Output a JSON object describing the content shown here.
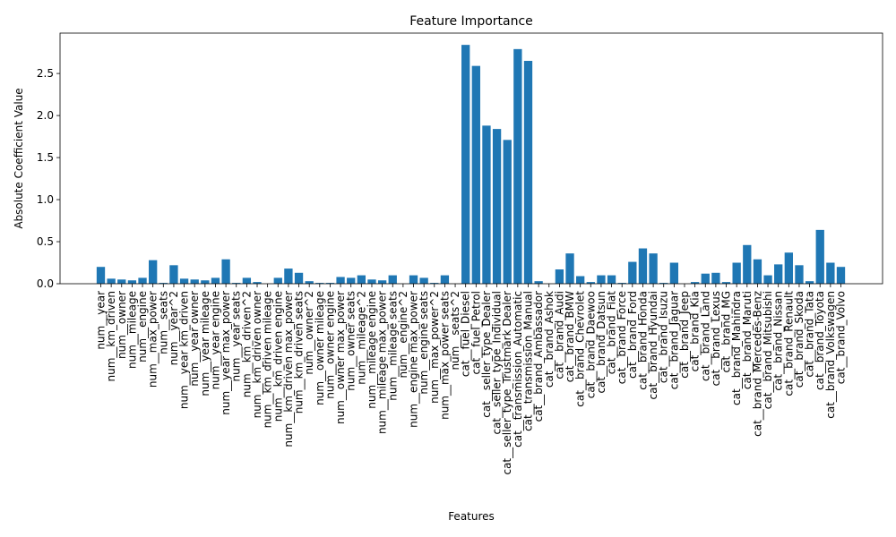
{
  "chart_data": {
    "type": "bar",
    "title": "Feature Importance",
    "xlabel": "Features",
    "ylabel": "Absolute Coefficient Value",
    "ylim": [
      0,
      2.98
    ],
    "yticks": [
      0.0,
      0.5,
      1.0,
      1.5,
      2.0,
      2.5
    ],
    "ytick_labels": [
      "0.0",
      "0.5",
      "1.0",
      "1.5",
      "2.0",
      "2.5"
    ],
    "bar_color": "#1f77b4",
    "grid": false,
    "categories": [
      "num__year",
      "num__km_driven",
      "num__owner",
      "num__mileage",
      "num__engine",
      "num__max_power",
      "num__seats",
      "num__year^2",
      "num__year km_driven",
      "num__year owner",
      "num__year mileage",
      "num__year engine",
      "num__year max_power",
      "num__year seats",
      "num__km_driven^2",
      "num__km_driven owner",
      "num__km_driven mileage",
      "num__km_driven engine",
      "num__km_driven max_power",
      "num__km_driven seats",
      "num__owner^2",
      "num__owner mileage",
      "num__owner engine",
      "num__owner max_power",
      "num__owner seats",
      "num__mileage^2",
      "num__mileage engine",
      "num__mileage max_power",
      "num__mileage seats",
      "num__engine^2",
      "num__engine max_power",
      "num__engine seats",
      "num__max_power^2",
      "num__max_power seats",
      "num__seats^2",
      "cat__fuel_Diesel",
      "cat__fuel_Petrol",
      "cat__seller_type_Dealer",
      "cat__seller_type_Individual",
      "cat__seller_type_Trustmark Dealer",
      "cat__transmission_Automatic",
      "cat__transmission_Manual",
      "cat__brand_Ambassador",
      "cat__brand_Ashok",
      "cat__brand_Audi",
      "cat__brand_BMW",
      "cat__brand_Chevrolet",
      "cat__brand_Daewoo",
      "cat__brand_Datsun",
      "cat__brand_Fiat",
      "cat__brand_Force",
      "cat__brand_Ford",
      "cat__brand_Honda",
      "cat__brand_Hyundai",
      "cat__brand_Isuzu",
      "cat__brand_Jaguar",
      "cat__brand_Jeep",
      "cat__brand_Kia",
      "cat__brand_Land",
      "cat__brand_Lexus",
      "cat__brand_MG",
      "cat__brand_Mahindra",
      "cat__brand_Maruti",
      "cat__brand_Mercedes-Benz",
      "cat__brand_Mitsubishi",
      "cat__brand_Nissan",
      "cat__brand_Renault",
      "cat__brand_Skoda",
      "cat__brand_Tata",
      "cat__brand_Toyota",
      "cat__brand_Volkswagen",
      "cat__brand_Volvo"
    ],
    "values": [
      0.2,
      0.06,
      0.05,
      0.04,
      0.07,
      0.28,
      0.01,
      0.22,
      0.06,
      0.05,
      0.04,
      0.07,
      0.29,
      0.01,
      0.07,
      0.02,
      0.0,
      0.07,
      0.18,
      0.13,
      0.03,
      0.01,
      0.01,
      0.08,
      0.07,
      0.1,
      0.05,
      0.04,
      0.1,
      0.0,
      0.1,
      0.07,
      0.01,
      0.1,
      0.0,
      2.84,
      2.59,
      1.88,
      1.84,
      1.71,
      2.79,
      2.65,
      0.03,
      0.0,
      0.17,
      0.36,
      0.09,
      0.02,
      0.1,
      0.1,
      0.01,
      0.26,
      0.42,
      0.36,
      0.01,
      0.25,
      0.0,
      0.02,
      0.12,
      0.13,
      0.02,
      0.25,
      0.46,
      0.29,
      0.1,
      0.23,
      0.37,
      0.22,
      0.03,
      0.64,
      0.25,
      0.2
    ]
  }
}
